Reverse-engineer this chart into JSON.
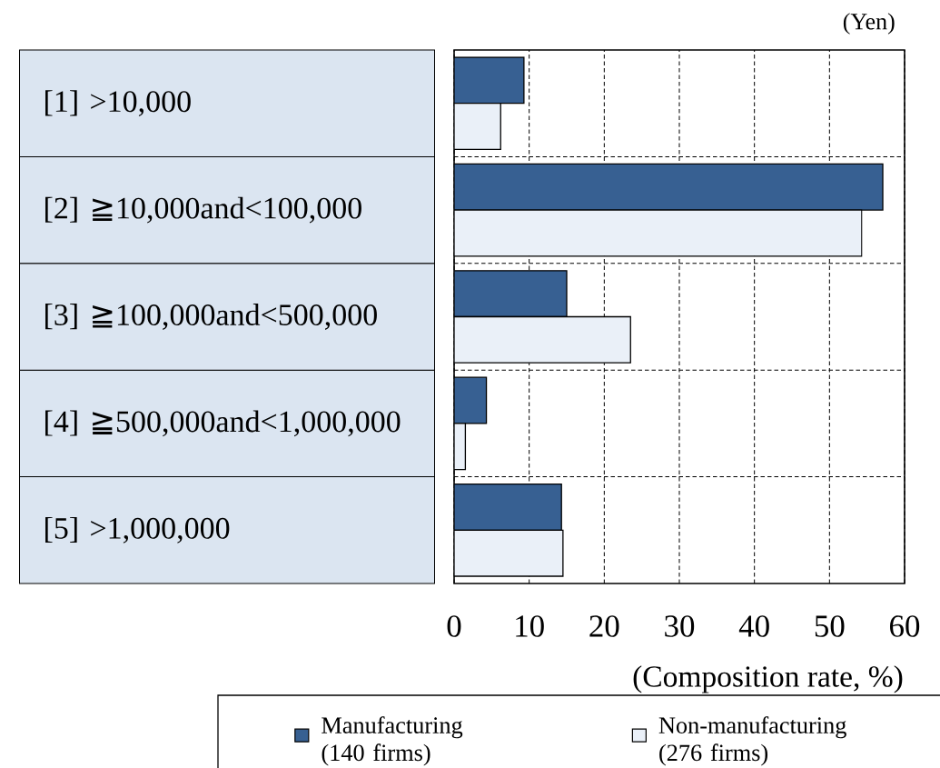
{
  "chart_data": {
    "type": "bar",
    "orientation": "horizontal",
    "categories": [
      "[1] >10,000",
      "[2] ≧10,000and<100,000",
      "[3] ≧100,000and<500,000",
      "[4] ≧500,000and<1,000,000",
      "[5] >1,000,000"
    ],
    "series": [
      {
        "name": "Manufacturing (140 firms)",
        "color": "#376092",
        "values": [
          9.3,
          57.1,
          15.0,
          4.3,
          14.3
        ]
      },
      {
        "name": "Non-manufacturing (276 firms)",
        "color": "#eaf0f8",
        "values": [
          6.2,
          54.3,
          23.5,
          1.5,
          14.5
        ]
      }
    ],
    "xlim": [
      0,
      60
    ],
    "xticks": [
      0,
      10,
      20,
      30,
      40,
      50,
      60
    ],
    "xlabel": "(Composition rate, %)",
    "ylabel": "(Yen)",
    "grid": true,
    "legend": "bottom"
  }
}
